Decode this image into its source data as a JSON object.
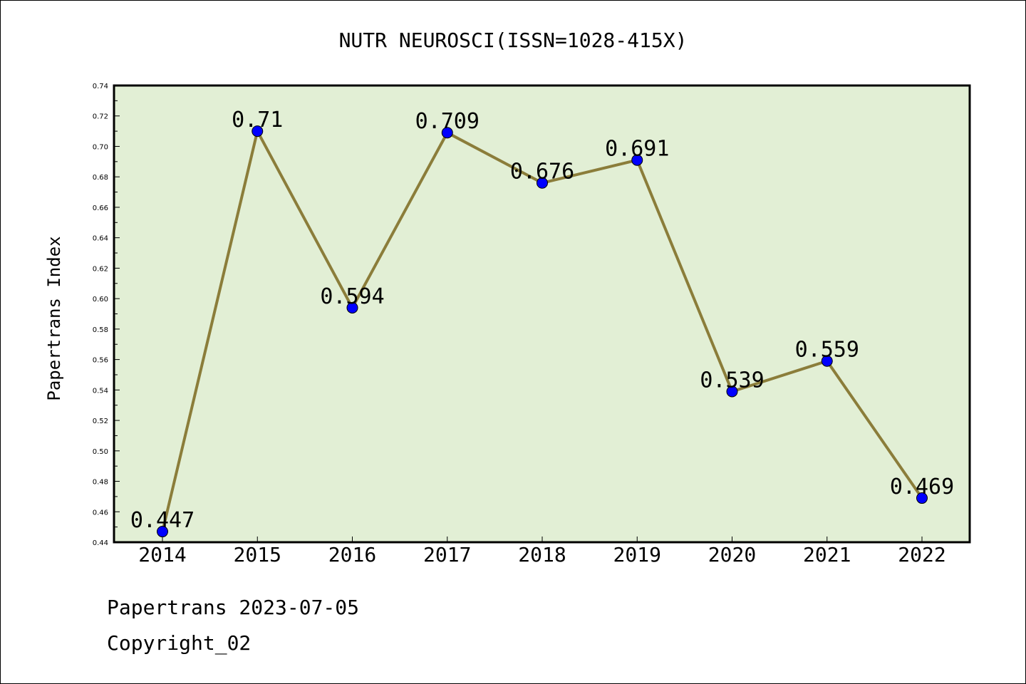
{
  "chart_data": {
    "type": "line",
    "title": "NUTR NEUROSCI(ISSN=1028-415X)",
    "xlabel": "",
    "ylabel": "Papertrans Index",
    "x": [
      "2014",
      "2015",
      "2016",
      "2017",
      "2018",
      "2019",
      "2020",
      "2021",
      "2022"
    ],
    "values": [
      0.447,
      0.71,
      0.594,
      0.709,
      0.676,
      0.691,
      0.539,
      0.559,
      0.469
    ],
    "data_labels": [
      "0.447",
      "0.71",
      "0.594",
      "0.709",
      "0.676",
      "0.691",
      "0.539",
      "0.559",
      "0.469"
    ],
    "ylim": [
      0.44,
      0.74
    ],
    "yticks": [
      "0.44",
      "0.46",
      "0.48",
      "0.50",
      "0.52",
      "0.54",
      "0.56",
      "0.58",
      "0.60",
      "0.62",
      "0.64",
      "0.66",
      "0.68",
      "0.70",
      "0.72",
      "0.74"
    ],
    "grid": false,
    "legend": "none",
    "colors": {
      "plot_background": "#e2efd5",
      "line": "#8b7d3a",
      "marker": "#0000ff"
    }
  },
  "footer": {
    "line1": "Papertrans 2023-07-05",
    "line2": "Copyright_02"
  }
}
